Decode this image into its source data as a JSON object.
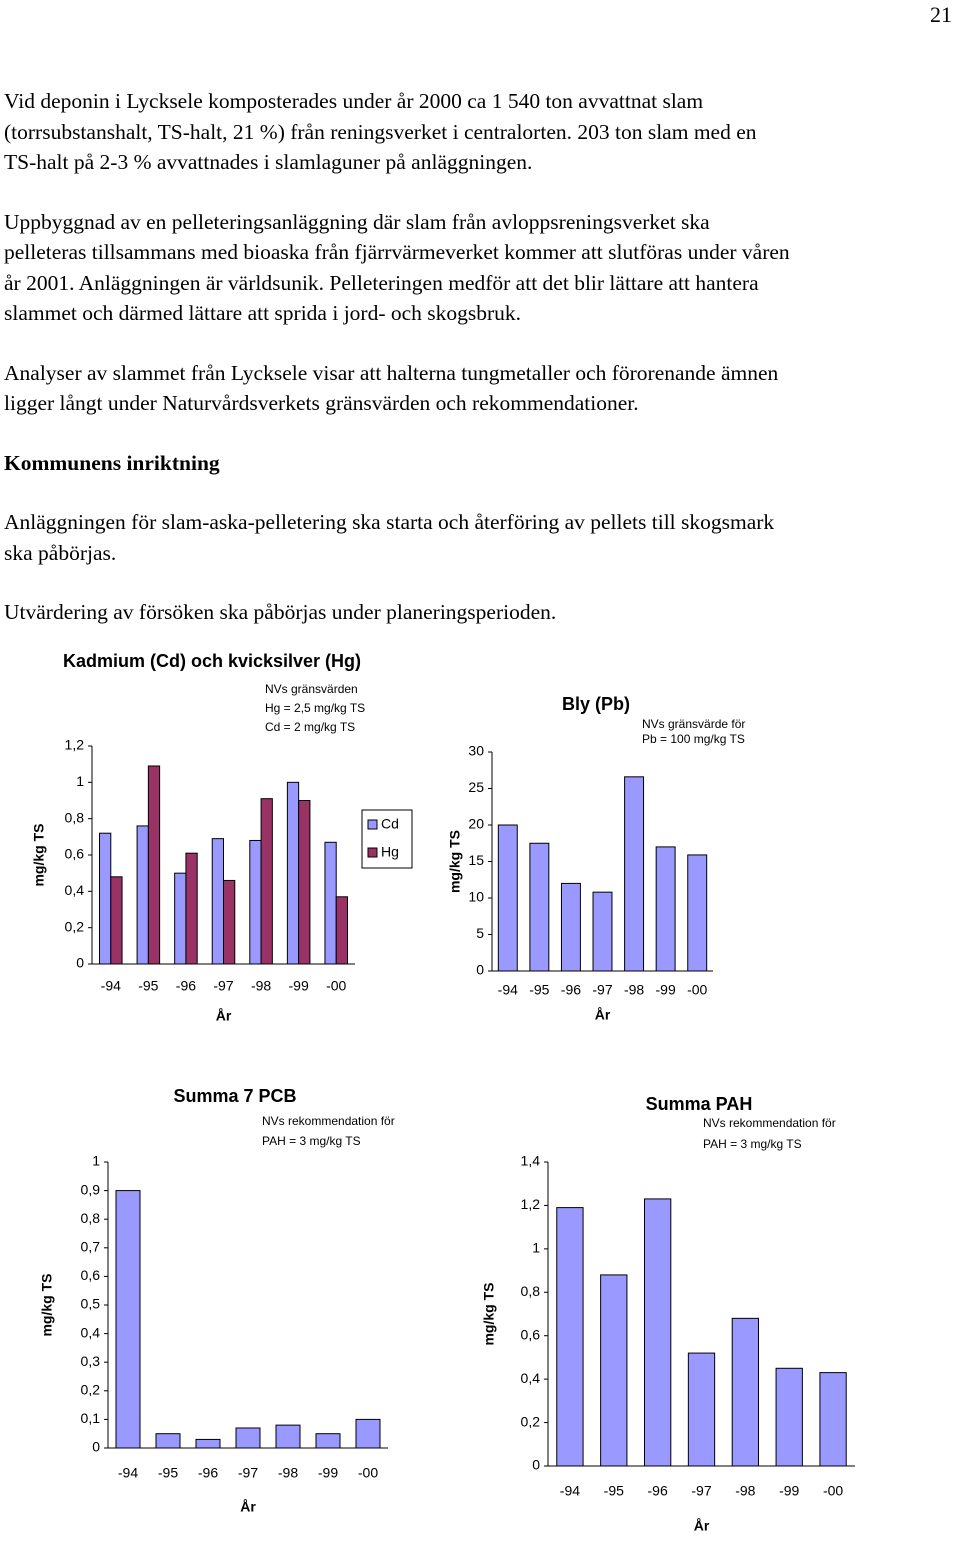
{
  "page_number": "21",
  "paragraphs": [
    [
      "Vid deponin i Lycksele komposterades under år 2000 ca 1 540 ton avvattnat slam",
      "(torrsubstanshalt, TS-halt, 21 %) från reningsverket i centralorten. 203 ton slam med en",
      "TS-halt på 2-3 % avvattnades i slamlaguner på anläggningen."
    ],
    [
      "Uppbyggnad av en pelleteringsanläggning där slam från avloppsreningsverket ska",
      "pelleteras tillsammans med bioaska från fjärrvärmeverket kommer att slutföras under våren",
      "år 2001. Anläggningen är världsunik. Pelleteringen medför att det blir lättare att hantera",
      "slammet och därmed lättare att sprida i jord- och skogsbruk."
    ],
    [
      "Analyser av slammet från Lycksele visar att halterna tungmetaller och förorenande ämnen",
      "ligger långt under Naturvårdsverkets gränsvärden och rekommendationer."
    ]
  ],
  "heading": "Kommunens inriktning",
  "paragraphs2": [
    [
      "Anläggningen för slam-aska-pelletering ska starta och återföring av pellets till skogsmark",
      "ska påbörjas."
    ],
    [
      "Utvärdering av försöken ska påbörjas under planeringsperioden."
    ]
  ],
  "chart_data": [
    {
      "type": "bar",
      "title": "Kadmium (Cd) och kvicksilver (Hg)",
      "annotation": [
        "NVs gränsvärden",
        "Hg = 2,5 mg/kg TS",
        "Cd =  2 mg/kg TS"
      ],
      "ylabel": "mg/kg TS",
      "xlabel": "År",
      "categories": [
        "-94",
        "-95",
        "-96",
        "-97",
        "-98",
        "-99",
        "-00"
      ],
      "series": [
        {
          "name": "Cd",
          "color": "#9999ff",
          "values": [
            0.72,
            0.76,
            0.5,
            0.69,
            0.68,
            1.0,
            0.67
          ]
        },
        {
          "name": "Hg",
          "color": "#993366",
          "values": [
            0.48,
            1.09,
            0.61,
            0.46,
            0.91,
            0.9,
            0.37
          ]
        }
      ],
      "ylim": [
        0,
        1.2
      ],
      "yticks": [
        0,
        {
          "value": 0.2,
          "label": "0,2"
        },
        {
          "value": 0.4,
          "label": "0,4"
        },
        {
          "value": 0.6,
          "label": "0,6"
        },
        {
          "value": 0.8,
          "label": "0,8"
        },
        1,
        {
          "value": 1.2,
          "label": "1,2"
        }
      ],
      "legend": "right"
    },
    {
      "type": "bar",
      "title": "Bly (Pb)",
      "annotation": [
        "NVs gränsvärde för",
        "Pb = 100 mg/kg TS"
      ],
      "ylabel": "mg/kg TS",
      "xlabel": "År",
      "categories": [
        "-94",
        "-95",
        "-96",
        "-97",
        "-98",
        "-99",
        "-00"
      ],
      "values": [
        20,
        17.5,
        12,
        10.8,
        26.6,
        17,
        15.9
      ],
      "color": "#9999ff",
      "ylim": [
        0,
        30
      ],
      "yticks": [
        0,
        5,
        10,
        15,
        20,
        25,
        30
      ]
    },
    {
      "type": "bar",
      "title": "Summa 7 PCB",
      "annotation": [
        "NVs rekommendation för",
        "PAH = 3 mg/kg TS"
      ],
      "ylabel": "mg/kg TS",
      "xlabel": "År",
      "categories": [
        "-94",
        "-95",
        "-96",
        "-97",
        "-98",
        "-99",
        "-00"
      ],
      "values": [
        0.9,
        0.05,
        0.03,
        0.07,
        0.08,
        0.05,
        0.1
      ],
      "color": "#9999ff",
      "ylim": [
        0,
        1
      ],
      "yticks": [
        0,
        {
          "value": 0.1,
          "label": "0,1"
        },
        {
          "value": 0.2,
          "label": "0,2"
        },
        {
          "value": 0.3,
          "label": "0,3"
        },
        {
          "value": 0.4,
          "label": "0,4"
        },
        {
          "value": 0.5,
          "label": "0,5"
        },
        {
          "value": 0.6,
          "label": "0,6"
        },
        {
          "value": 0.7,
          "label": "0,7"
        },
        {
          "value": 0.8,
          "label": "0,8"
        },
        {
          "value": 0.9,
          "label": "0,9"
        },
        1
      ]
    },
    {
      "type": "bar",
      "title": "Summa PAH",
      "annotation": [
        "NVs rekommendation för",
        "PAH = 3 mg/kg TS"
      ],
      "ylabel": "mg/kg TS",
      "xlabel": "År",
      "categories": [
        "-94",
        "-95",
        "-96",
        "-97",
        "-98",
        "-99",
        "-00"
      ],
      "values": [
        1.19,
        0.88,
        1.23,
        0.52,
        0.68,
        0.45,
        0.43
      ],
      "color": "#9999ff",
      "ylim": [
        0,
        1.4
      ],
      "yticks": [
        0,
        {
          "value": 0.2,
          "label": "0,2"
        },
        {
          "value": 0.4,
          "label": "0,4"
        },
        {
          "value": 0.6,
          "label": "0,6"
        },
        {
          "value": 0.8,
          "label": "0,8"
        },
        1,
        {
          "value": 1.2,
          "label": "1,2"
        },
        {
          "value": 1.4,
          "label": "1,4"
        }
      ]
    }
  ]
}
